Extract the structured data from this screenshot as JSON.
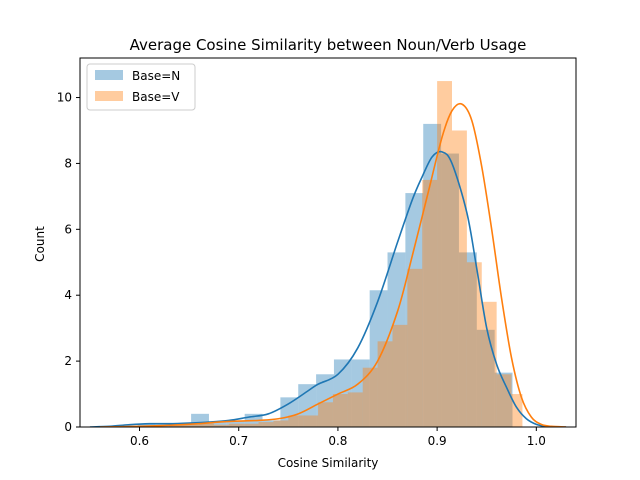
{
  "chart_data": {
    "type": "bar",
    "title": "Average Cosine Similarity between Noun/Verb Usage",
    "xlabel": "Cosine Similarity",
    "ylabel": "Count",
    "xlim": [
      0.54,
      1.04
    ],
    "ylim": [
      0,
      11.2
    ],
    "xticks": [
      "0.6",
      "0.7",
      "0.8",
      "0.9",
      "1.0"
    ],
    "yticks": [
      "0",
      "2",
      "4",
      "6",
      "8",
      "10"
    ],
    "legend_position": "top-left",
    "grid": false,
    "series": [
      {
        "name": "Base=N",
        "color": "#1f77b4",
        "histogram": {
          "bin_edges": [
            0.598,
            0.616,
            0.634,
            0.652,
            0.67,
            0.688,
            0.706,
            0.724,
            0.742,
            0.76,
            0.778,
            0.796,
            0.814,
            0.832,
            0.85,
            0.868,
            0.886,
            0.904,
            0.922,
            0.94,
            0.958,
            0.976,
            0.986
          ],
          "counts": [
            0.1,
            0.07,
            0.07,
            0.4,
            0.15,
            0.2,
            0.4,
            0.2,
            0.9,
            1.3,
            1.6,
            2.05,
            2.05,
            4.15,
            5.3,
            7.1,
            9.2,
            8.3,
            5.3,
            2.95,
            1.65,
            0
          ]
        },
        "kde": {
          "x": [
            0.55,
            0.57,
            0.59,
            0.61,
            0.63,
            0.65,
            0.67,
            0.69,
            0.71,
            0.73,
            0.75,
            0.77,
            0.78,
            0.8,
            0.82,
            0.84,
            0.86,
            0.875,
            0.885,
            0.895,
            0.905,
            0.915,
            0.93,
            0.94,
            0.95,
            0.96,
            0.97,
            0.98,
            0.99,
            1.0,
            1.01,
            1.02,
            1.03
          ],
          "y": [
            0.0,
            0.02,
            0.07,
            0.1,
            0.1,
            0.12,
            0.15,
            0.2,
            0.3,
            0.4,
            0.7,
            1.1,
            1.3,
            1.6,
            2.4,
            3.8,
            5.6,
            6.9,
            7.6,
            8.2,
            8.35,
            8.0,
            6.5,
            4.8,
            3.0,
            1.9,
            1.2,
            0.6,
            0.25,
            0.08,
            0.02,
            0.0,
            0.0
          ]
        }
      },
      {
        "name": "Base=V",
        "color": "#ff7f0e",
        "histogram": {
          "bin_edges": [
            0.63,
            0.645,
            0.66,
            0.675,
            0.69,
            0.705,
            0.72,
            0.735,
            0.75,
            0.765,
            0.78,
            0.795,
            0.81,
            0.825,
            0.84,
            0.855,
            0.87,
            0.885,
            0.9,
            0.915,
            0.93,
            0.945,
            0.96,
            0.975,
            0.986
          ],
          "counts": [
            0.1,
            0.07,
            0.1,
            0.07,
            0.1,
            0.1,
            0.15,
            0.2,
            0.35,
            0.35,
            0.75,
            1.0,
            1.05,
            1.8,
            2.6,
            3.1,
            4.8,
            7.5,
            10.5,
            9.0,
            5.0,
            3.8,
            1.6,
            1.0
          ]
        },
        "kde": {
          "x": [
            0.56,
            0.6,
            0.63,
            0.66,
            0.68,
            0.7,
            0.72,
            0.74,
            0.76,
            0.78,
            0.8,
            0.82,
            0.84,
            0.86,
            0.875,
            0.89,
            0.905,
            0.915,
            0.925,
            0.935,
            0.945,
            0.955,
            0.965,
            0.975,
            0.985,
            0.995,
            1.005,
            1.015,
            1.03
          ],
          "y": [
            0.0,
            0.02,
            0.05,
            0.1,
            0.15,
            0.18,
            0.2,
            0.25,
            0.4,
            0.7,
            1.0,
            1.3,
            2.0,
            3.5,
            5.2,
            7.0,
            8.8,
            9.6,
            9.8,
            9.3,
            7.9,
            6.0,
            3.9,
            2.1,
            0.9,
            0.3,
            0.08,
            0.02,
            0.0
          ]
        }
      }
    ]
  }
}
